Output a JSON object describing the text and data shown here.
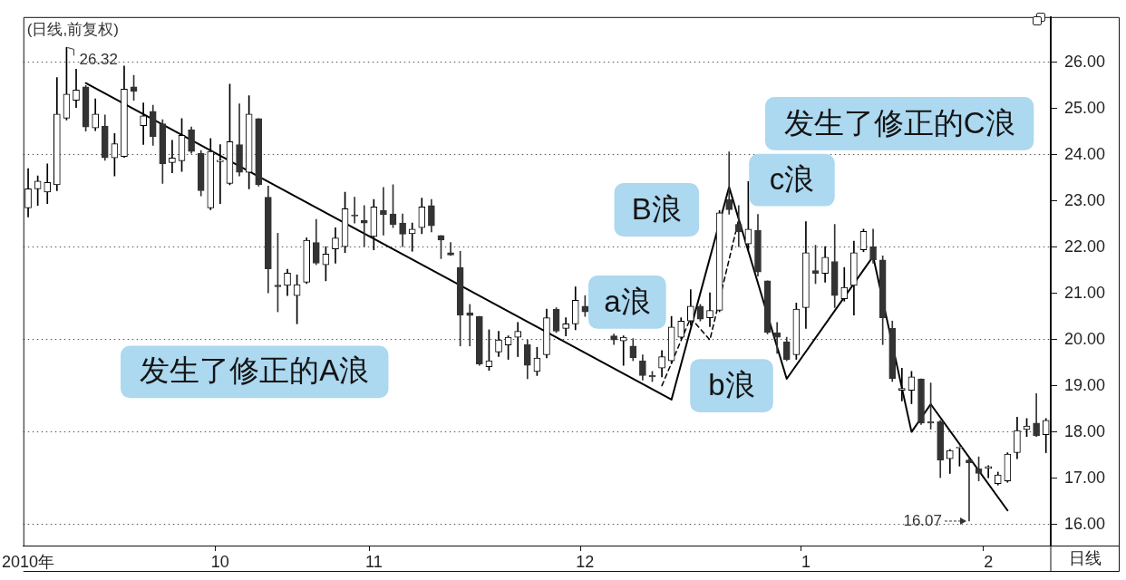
{
  "chart_data": {
    "type": "candlestick",
    "title": "(日线,前复权)",
    "xlabel": "日线",
    "categories": [
      "2010年",
      null,
      null,
      null,
      null,
      null,
      null,
      null,
      null,
      null,
      null,
      null,
      null,
      null,
      null,
      null,
      null,
      null,
      null,
      null,
      "10",
      null,
      null,
      null,
      null,
      null,
      null,
      null,
      null,
      null,
      null,
      null,
      null,
      null,
      null,
      null,
      "11",
      null,
      null,
      null,
      null,
      null,
      null,
      null,
      null,
      null,
      null,
      null,
      null,
      null,
      null,
      null,
      null,
      null,
      null,
      null,
      null,
      null,
      "12",
      null,
      null,
      null,
      null,
      null,
      null,
      null,
      null,
      null,
      null,
      null,
      null,
      null,
      null,
      null,
      null,
      null,
      null,
      null,
      null,
      null,
      null,
      "1",
      null,
      null,
      null,
      null,
      null,
      null,
      null,
      null,
      null,
      null,
      null,
      null,
      null,
      null,
      null,
      null,
      null,
      null,
      "2",
      null,
      null,
      null,
      null,
      null,
      null
    ],
    "ohlc": [
      [
        22.85,
        23.7,
        22.65,
        23.26
      ],
      [
        23.26,
        23.54,
        22.9,
        23.43
      ],
      [
        23.19,
        23.8,
        22.94,
        23.4
      ],
      [
        23.35,
        25.67,
        23.22,
        24.88
      ],
      [
        24.79,
        26.32,
        24.75,
        25.31
      ],
      [
        25.18,
        25.85,
        25.02,
        25.4
      ],
      [
        25.47,
        25.5,
        24.51,
        24.6
      ],
      [
        24.58,
        25.21,
        24.52,
        24.88
      ],
      [
        24.62,
        24.86,
        23.88,
        23.93
      ],
      [
        23.93,
        24.46,
        23.54,
        24.24
      ],
      [
        23.96,
        25.92,
        23.94,
        25.42
      ],
      [
        25.47,
        25.72,
        25.18,
        25.37
      ],
      [
        24.63,
        25.12,
        24.22,
        24.84
      ],
      [
        24.94,
        25.07,
        24.2,
        24.39
      ],
      [
        24.67,
        24.76,
        23.38,
        23.8
      ],
      [
        23.83,
        24.31,
        23.61,
        23.93
      ],
      [
        23.87,
        24.78,
        23.64,
        24.42
      ],
      [
        24.54,
        24.6,
        24.03,
        24.07
      ],
      [
        24.03,
        24.09,
        23.11,
        23.22
      ],
      [
        22.85,
        24.35,
        22.81,
        24.07
      ],
      [
        23.85,
        24.22,
        22.94,
        23.88
      ],
      [
        23.38,
        25.53,
        23.35,
        24.28
      ],
      [
        24.22,
        25.1,
        23.54,
        23.62
      ],
      [
        23.62,
        25.28,
        23.26,
        24.88
      ],
      [
        24.78,
        24.78,
        23.32,
        23.35
      ],
      [
        23.08,
        23.32,
        21.01,
        21.53
      ],
      [
        21.18,
        22.3,
        20.6,
        21.14
      ],
      [
        21.17,
        21.52,
        20.95,
        21.44
      ],
      [
        20.95,
        21.4,
        20.34,
        21.19
      ],
      [
        21.24,
        22.2,
        21.21,
        22.15
      ],
      [
        22.1,
        22.6,
        21.62,
        21.65
      ],
      [
        21.62,
        22.01,
        21.27,
        21.85
      ],
      [
        21.96,
        22.42,
        21.65,
        22.2
      ],
      [
        22.01,
        23.19,
        21.88,
        22.83
      ],
      [
        22.7,
        23.08,
        22.52,
        22.67
      ],
      [
        22.58,
        22.9,
        22.01,
        22.52
      ],
      [
        22.23,
        23.03,
        21.94,
        22.87
      ],
      [
        22.79,
        23.29,
        22.26,
        22.7
      ],
      [
        22.72,
        23.35,
        22.42,
        22.49
      ],
      [
        22.52,
        22.72,
        22.01,
        22.28
      ],
      [
        22.29,
        22.52,
        21.91,
        22.39
      ],
      [
        22.42,
        23.06,
        22.29,
        22.87
      ],
      [
        22.9,
        23.03,
        22.33,
        22.46
      ],
      [
        22.25,
        22.25,
        21.75,
        22.15
      ],
      [
        21.88,
        22.1,
        21.82,
        21.83
      ],
      [
        21.56,
        21.91,
        19.86,
        20.53
      ],
      [
        20.58,
        20.76,
        19.86,
        20.52
      ],
      [
        20.5,
        20.5,
        19.44,
        19.47
      ],
      [
        19.41,
        20.21,
        19.33,
        19.54
      ],
      [
        19.73,
        20.18,
        19.63,
        19.99
      ],
      [
        19.88,
        20.08,
        19.57,
        20.05
      ],
      [
        20.05,
        20.37,
        19.63,
        20.18
      ],
      [
        19.89,
        19.99,
        19.15,
        19.44
      ],
      [
        19.31,
        19.83,
        19.22,
        19.6
      ],
      [
        19.67,
        20.66,
        19.6,
        20.47
      ],
      [
        20.66,
        20.69,
        20.15,
        20.18
      ],
      [
        20.24,
        20.47,
        20.08,
        20.34
      ],
      [
        20.34,
        21.14,
        20.21,
        20.85
      ],
      [
        20.72,
        20.95,
        20.5,
        20.6
      ],
      null,
      null,
      [
        20.08,
        20.12,
        19.89,
        19.99
      ],
      [
        19.97,
        20.08,
        19.44,
        20.05
      ],
      [
        19.86,
        20.02,
        19.54,
        19.6
      ],
      [
        19.54,
        19.67,
        19.12,
        19.22
      ],
      [
        19.22,
        19.31,
        19.09,
        19.19
      ],
      [
        19.38,
        19.76,
        19.19,
        19.63
      ],
      [
        19.54,
        20.5,
        19.48,
        20.27
      ],
      [
        20.05,
        20.47,
        20.02,
        20.4
      ],
      [
        20.4,
        21.08,
        20.31,
        20.72
      ],
      [
        20.72,
        20.76,
        20.4,
        20.44
      ],
      [
        20.47,
        21.01,
        20.28,
        20.63
      ],
      [
        20.63,
        22.79,
        20.6,
        22.74
      ],
      [
        23.03,
        24.06,
        22.71,
        22.81
      ],
      [
        22.49,
        22.9,
        22.01,
        22.33
      ],
      [
        22.07,
        23.42,
        21.94,
        22.39
      ],
      [
        22.36,
        22.71,
        21.37,
        21.46
      ],
      [
        21.27,
        21.27,
        20.12,
        20.15
      ],
      [
        20.15,
        20.37,
        19.7,
        20.05
      ],
      [
        19.95,
        20.05,
        19.54,
        19.57
      ],
      [
        19.67,
        20.79,
        19.57,
        20.66
      ],
      [
        20.69,
        22.55,
        20.24,
        21.88
      ],
      [
        21.49,
        22.04,
        21.21,
        21.43
      ],
      [
        21.43,
        22.01,
        21.24,
        21.78
      ],
      [
        21.69,
        22.49,
        20.69,
        20.95
      ],
      [
        20.88,
        21.56,
        20.83,
        21.13
      ],
      [
        21.17,
        22.13,
        20.53,
        21.88
      ],
      [
        21.94,
        22.39,
        21.9,
        22.34
      ],
      [
        22.01,
        22.39,
        21.65,
        21.72
      ],
      [
        21.72,
        21.81,
        19.89,
        20.47
      ],
      [
        20.24,
        20.4,
        19.09,
        19.15
      ],
      [
        18.9,
        19.38,
        18.67,
        18.94
      ],
      [
        18.9,
        19.31,
        18.61,
        19.19
      ],
      [
        19.15,
        19.15,
        18.16,
        18.19
      ],
      [
        18.22,
        19.06,
        18.06,
        18.19
      ],
      [
        18.22,
        18.25,
        17.01,
        17.39
      ],
      [
        17.42,
        17.62,
        17.1,
        17.6
      ],
      [
        17.65,
        17.68,
        17.26,
        17.67
      ],
      [
        17.39,
        17.42,
        16.07,
        17.33
      ],
      [
        17.2,
        17.46,
        16.94,
        17.1
      ],
      [
        17.21,
        17.27,
        17.01,
        17.25
      ],
      [
        16.88,
        17.13,
        16.85,
        17.07
      ],
      [
        16.94,
        17.55,
        16.91,
        17.52
      ],
      [
        17.55,
        18.32,
        17.42,
        18.03
      ],
      [
        18.05,
        18.29,
        17.9,
        18.13
      ],
      [
        18.19,
        18.83,
        17.9,
        17.92
      ],
      [
        17.94,
        18.29,
        17.55,
        18.25
      ]
    ],
    "value_labels": [
      null,
      null,
      null,
      null,
      "26.32",
      null,
      null,
      null,
      null,
      null,
      null,
      null,
      null,
      null,
      null,
      null,
      null,
      null,
      null,
      null,
      null,
      null,
      null,
      null,
      null,
      null,
      null,
      null,
      null,
      null,
      null,
      null,
      null,
      null,
      null,
      null,
      null,
      null,
      null,
      null,
      null,
      null,
      null,
      null,
      null,
      null,
      null,
      null,
      null,
      null,
      null,
      null,
      null,
      null,
      null,
      null,
      null,
      null,
      null,
      null,
      null,
      null,
      null,
      null,
      null,
      null,
      null,
      null,
      null,
      null,
      null,
      null,
      null,
      null,
      null,
      null,
      null,
      null,
      null,
      null,
      null,
      null,
      null,
      null,
      null,
      null,
      null,
      null,
      null,
      null,
      null,
      null,
      null,
      null,
      null,
      null,
      null,
      null,
      "16.07",
      null,
      null,
      null,
      null,
      null,
      null,
      null,
      null
    ],
    "series": [
      {
        "type": "line",
        "color": "#000000",
        "values": [
          null,
          null,
          null,
          null,
          null,
          null,
          25.55,
          null,
          null,
          null,
          null,
          null,
          null,
          null,
          null,
          null,
          null,
          null,
          null,
          null,
          null,
          null,
          null,
          null,
          null,
          null,
          null,
          null,
          null,
          null,
          null,
          null,
          null,
          null,
          null,
          null,
          null,
          null,
          null,
          null,
          null,
          null,
          null,
          null,
          null,
          null,
          null,
          null,
          null,
          null,
          null,
          null,
          null,
          null,
          null,
          null,
          null,
          null,
          null,
          null,
          null,
          null,
          null,
          null,
          null,
          null,
          null,
          18.7,
          null,
          null,
          null,
          null,
          null,
          23.3,
          null,
          null,
          null,
          null,
          null,
          19.15,
          null,
          null,
          null,
          null,
          null,
          null,
          null,
          null,
          21.8,
          null,
          null,
          null,
          18.0,
          null,
          18.6,
          null,
          null,
          null,
          null,
          null,
          null,
          null,
          16.3,
          null,
          null,
          null,
          null
        ]
      },
      {
        "type": "line",
        "color": "#000000",
        "line_style": "dashed",
        "values": [
          null,
          null,
          null,
          null,
          null,
          null,
          null,
          null,
          null,
          null,
          null,
          null,
          null,
          null,
          null,
          null,
          null,
          null,
          null,
          null,
          null,
          null,
          null,
          null,
          null,
          null,
          null,
          null,
          null,
          null,
          null,
          null,
          null,
          null,
          null,
          null,
          null,
          null,
          null,
          null,
          null,
          null,
          null,
          null,
          null,
          null,
          null,
          null,
          null,
          null,
          null,
          null,
          null,
          null,
          null,
          null,
          null,
          null,
          null,
          null,
          null,
          null,
          null,
          null,
          null,
          null,
          19.0,
          null,
          null,
          20.47,
          null,
          19.99,
          null,
          null,
          22.6,
          null,
          null,
          null,
          null,
          null,
          null,
          null,
          null,
          null,
          null,
          null,
          null,
          null,
          null,
          null,
          null,
          null,
          null,
          null,
          null,
          null,
          null,
          null,
          null,
          null,
          null,
          null,
          null,
          null,
          null,
          null,
          null
        ]
      }
    ],
    "ylim": [
      15.54,
      26.98
    ],
    "yticks": [
      {
        "value": 16,
        "label": "16.00"
      },
      {
        "value": 17,
        "label": "17.00"
      },
      {
        "value": 18,
        "label": "18.00"
      },
      {
        "value": 19,
        "label": "19.00"
      },
      {
        "value": 20,
        "label": "20.00"
      },
      {
        "value": 21,
        "label": "21.00"
      },
      {
        "value": 22,
        "label": "22.00"
      },
      {
        "value": 23,
        "label": "23.00"
      },
      {
        "value": 24,
        "label": "24.00"
      },
      {
        "value": 25,
        "label": "25.00"
      },
      {
        "value": 26,
        "label": "26.00"
      }
    ],
    "grid": "y",
    "marker": "none",
    "annotations": [
      "发生了修正的A浪",
      "a浪",
      "B浪",
      "b浪",
      "c浪",
      "发生了修正的C浪"
    ]
  }
}
